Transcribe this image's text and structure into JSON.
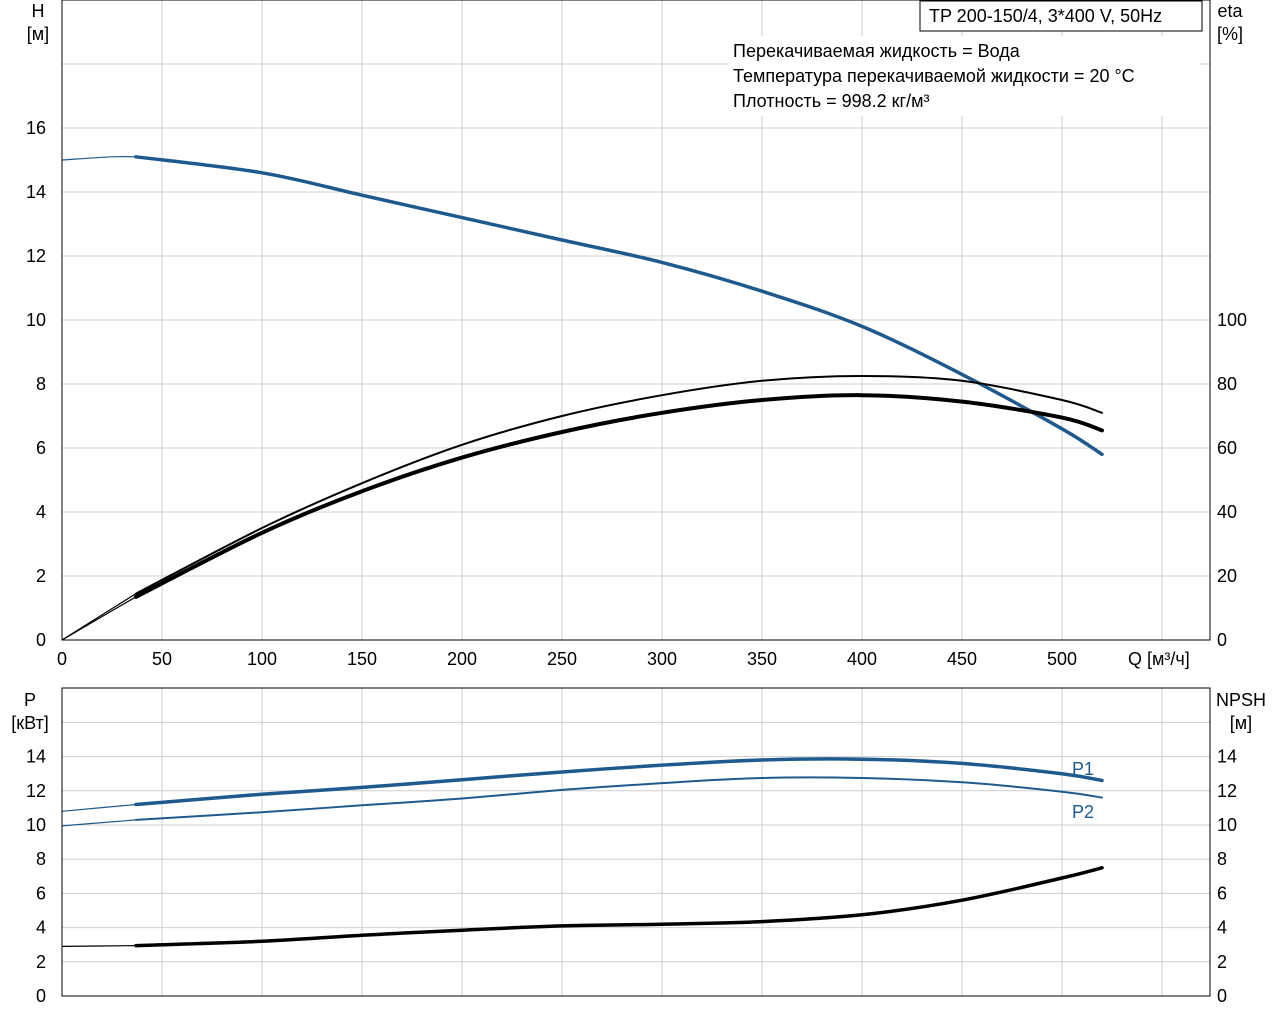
{
  "header": {
    "pump_model": "TP 200-150/4, 3*400 V, 50Hz",
    "liquid": "Перекачиваемая жидкость = Вода",
    "temperature": "Температура перекачиваемой жидкости = 20 °C",
    "density": "Плотность = 998.2 кг/м³"
  },
  "colors": {
    "blue": "#1f5a8e",
    "black": "#000000"
  },
  "chart_data": [
    {
      "type": "line",
      "x_label": "Q [м³/ч]",
      "x_ticks": [
        "0",
        "50",
        "100",
        "150",
        "200",
        "250",
        "300",
        "350",
        "400",
        "450",
        "500"
      ],
      "x_range": [
        0,
        550
      ],
      "y_left": {
        "label_top": "H",
        "label_unit": "[м]",
        "ticks": [
          "0",
          "2",
          "4",
          "6",
          "8",
          "10",
          "12",
          "14",
          "16"
        ],
        "range": [
          0,
          20
        ]
      },
      "y_right": {
        "label_top": "eta",
        "label_unit": "[%]",
        "ticks": [
          "0",
          "20",
          "40",
          "60",
          "80",
          "100"
        ],
        "range": [
          0,
          200
        ]
      },
      "grid": true,
      "series": [
        {
          "axis": "left",
          "color": "#1f5a8e",
          "width": 3.5,
          "dashed_start_at": 37,
          "points": [
            [
              0,
              15.0
            ],
            [
              25,
              15.1
            ],
            [
              37,
              15.1
            ],
            [
              100,
              14.6
            ],
            [
              150,
              13.9
            ],
            [
              200,
              13.2
            ],
            [
              250,
              12.5
            ],
            [
              300,
              11.8
            ],
            [
              350,
              10.9
            ],
            [
              400,
              9.8
            ],
            [
              450,
              8.3
            ],
            [
              500,
              6.6
            ],
            [
              520,
              5.8
            ]
          ]
        },
        {
          "axis": "right",
          "color": "#000000",
          "width": 2,
          "dashed_start_at": 37,
          "points": [
            [
              0,
              0
            ],
            [
              37,
              14.5
            ],
            [
              100,
              35
            ],
            [
              150,
              49
            ],
            [
              200,
              61
            ],
            [
              250,
              70
            ],
            [
              300,
              76.5
            ],
            [
              350,
              81
            ],
            [
              400,
              82.5
            ],
            [
              450,
              81
            ],
            [
              500,
              75
            ],
            [
              520,
              71
            ]
          ]
        },
        {
          "axis": "right",
          "color": "#000000",
          "width": 4,
          "dashed_start_at": 37,
          "points": [
            [
              0,
              0
            ],
            [
              37,
              13.5
            ],
            [
              100,
              33.5
            ],
            [
              150,
              46.5
            ],
            [
              200,
              57
            ],
            [
              250,
              65
            ],
            [
              300,
              71
            ],
            [
              350,
              75
            ],
            [
              400,
              76.5
            ],
            [
              450,
              74.5
            ],
            [
              500,
              69.5
            ],
            [
              520,
              65.5
            ]
          ]
        }
      ]
    },
    {
      "type": "line",
      "x_range": [
        0,
        550
      ],
      "y_left": {
        "label_top": "P",
        "label_unit": "[кВт]",
        "ticks": [
          "0",
          "2",
          "4",
          "6",
          "8",
          "10",
          "12",
          "14"
        ],
        "range": [
          0,
          18
        ]
      },
      "y_right": {
        "label_top": "NPSH",
        "label_unit": "[м]",
        "ticks": [
          "0",
          "2",
          "4",
          "6",
          "8",
          "10",
          "12",
          "14"
        ],
        "range": [
          0,
          18
        ]
      },
      "grid": true,
      "series": [
        {
          "name": "P1",
          "axis": "left",
          "color": "#1f5a8e",
          "width": 3.5,
          "dashed_start_at": 37,
          "points": [
            [
              0,
              10.8
            ],
            [
              37,
              11.2
            ],
            [
              100,
              11.8
            ],
            [
              150,
              12.2
            ],
            [
              200,
              12.65
            ],
            [
              250,
              13.1
            ],
            [
              300,
              13.5
            ],
            [
              350,
              13.8
            ],
            [
              400,
              13.85
            ],
            [
              450,
              13.6
            ],
            [
              500,
              13.0
            ],
            [
              520,
              12.6
            ]
          ]
        },
        {
          "name": "P2",
          "axis": "left",
          "color": "#1f5a8e",
          "width": 2,
          "dashed_start_at": 37,
          "points": [
            [
              0,
              9.95
            ],
            [
              37,
              10.3
            ],
            [
              100,
              10.75
            ],
            [
              150,
              11.15
            ],
            [
              200,
              11.55
            ],
            [
              250,
              12.05
            ],
            [
              300,
              12.45
            ],
            [
              350,
              12.75
            ],
            [
              400,
              12.75
            ],
            [
              450,
              12.5
            ],
            [
              500,
              11.95
            ],
            [
              520,
              11.6
            ]
          ]
        },
        {
          "axis": "right",
          "color": "#000000",
          "width": 3.5,
          "dashed_start_at": 37,
          "points": [
            [
              0,
              2.9
            ],
            [
              37,
              2.95
            ],
            [
              100,
              3.2
            ],
            [
              150,
              3.55
            ],
            [
              200,
              3.85
            ],
            [
              250,
              4.1
            ],
            [
              300,
              4.2
            ],
            [
              350,
              4.35
            ],
            [
              400,
              4.75
            ],
            [
              450,
              5.6
            ],
            [
              500,
              6.9
            ],
            [
              520,
              7.5
            ]
          ]
        }
      ]
    }
  ]
}
